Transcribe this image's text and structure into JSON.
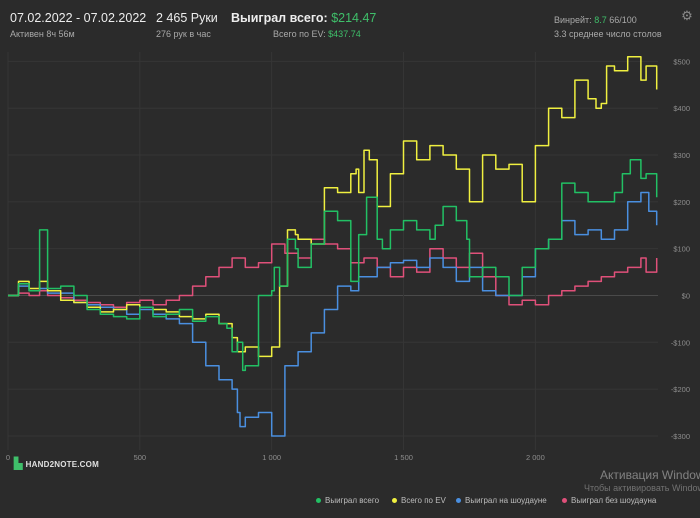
{
  "header": {
    "date_range": "07.02.2022 - 07.02.2022",
    "active": "Активен 8ч 56м",
    "hands": "2 465 Руки",
    "hands_per_hour": "276 рук в час",
    "won_total_label": "Выиграл всего:",
    "won_total_value": "$214.47",
    "ev_total_label": "Всего по EV:",
    "ev_total_value": "$437.74",
    "winrate_label": "Винрейт:",
    "winrate_value": "8.7",
    "winrate_suffix": "66/100",
    "avg_tables": "3.3 среднее число столов"
  },
  "logo": {
    "text": "HAND2NOTE.COM"
  },
  "legend": [
    {
      "label": "Выиграл всего",
      "color": "#22c064"
    },
    {
      "label": "Всего по EV",
      "color": "#f0f040"
    },
    {
      "label": "Выиграл на шоудауне",
      "color": "#4a8fe0"
    },
    {
      "label": "Выиграл без шоудауна",
      "color": "#e0507a"
    }
  ],
  "watermark": {
    "title": "Активация Windows",
    "subtitle": "Чтобы активировать Windows"
  },
  "chart_data": {
    "type": "line",
    "xlabel": "",
    "ylabel": "",
    "xlim": [
      0,
      2465
    ],
    "ylim": [
      -330,
      520
    ],
    "x_ticks": [
      {
        "value": 0,
        "label": "0"
      },
      {
        "value": 500,
        "label": "500"
      },
      {
        "value": 1000,
        "label": "1 000"
      },
      {
        "value": 1500,
        "label": "1 500"
      },
      {
        "value": 2000,
        "label": "2 000"
      }
    ],
    "y_ticks": [
      {
        "value": 500,
        "label": "$500"
      },
      {
        "value": 400,
        "label": "$400"
      },
      {
        "value": 300,
        "label": "$300"
      },
      {
        "value": 200,
        "label": "$200"
      },
      {
        "value": 100,
        "label": "$100"
      },
      {
        "value": 0,
        "label": "$0"
      },
      {
        "value": -100,
        "label": "-$100"
      },
      {
        "value": -200,
        "label": "-$200"
      },
      {
        "value": -300,
        "label": "-$300"
      }
    ],
    "grid": true,
    "series": [
      {
        "name": "Выиграл всего",
        "color": "#22c064",
        "x": [
          0,
          40,
          80,
          120,
          150,
          200,
          250,
          300,
          350,
          400,
          450,
          500,
          550,
          600,
          650,
          700,
          750,
          800,
          830,
          850,
          870,
          890,
          900,
          950,
          1000,
          1010,
          1030,
          1060,
          1090,
          1100,
          1150,
          1200,
          1250,
          1300,
          1330,
          1360,
          1400,
          1420,
          1450,
          1500,
          1550,
          1600,
          1620,
          1650,
          1700,
          1740,
          1750,
          1800,
          1850,
          1900,
          1950,
          2000,
          2050,
          2100,
          2150,
          2200,
          2250,
          2300,
          2330,
          2360,
          2400,
          2420,
          2460
        ],
        "y": [
          0,
          25,
          10,
          140,
          15,
          20,
          0,
          -30,
          -40,
          -45,
          -50,
          -25,
          -45,
          -40,
          -30,
          -55,
          -45,
          -60,
          -70,
          -120,
          -100,
          -160,
          -150,
          0,
          10,
          60,
          20,
          120,
          100,
          60,
          110,
          180,
          160,
          30,
          130,
          210,
          120,
          100,
          140,
          160,
          140,
          120,
          150,
          190,
          160,
          120,
          40,
          60,
          40,
          0,
          60,
          100,
          120,
          240,
          220,
          200,
          200,
          220,
          260,
          290,
          250,
          260,
          210
        ]
      },
      {
        "name": "Всего по EV",
        "color": "#f0f040",
        "x": [
          0,
          40,
          80,
          120,
          150,
          200,
          250,
          300,
          350,
          400,
          450,
          500,
          550,
          600,
          650,
          700,
          750,
          800,
          850,
          870,
          900,
          950,
          1000,
          1030,
          1060,
          1090,
          1100,
          1150,
          1200,
          1250,
          1300,
          1320,
          1330,
          1350,
          1370,
          1400,
          1450,
          1500,
          1550,
          1600,
          1650,
          1700,
          1750,
          1800,
          1850,
          1900,
          1950,
          2000,
          2030,
          2050,
          2100,
          2150,
          2200,
          2230,
          2250,
          2270,
          2300,
          2350,
          2400,
          2420,
          2460
        ],
        "y": [
          0,
          30,
          15,
          30,
          10,
          -10,
          -15,
          -25,
          -35,
          -30,
          -20,
          -25,
          -30,
          -35,
          -45,
          -50,
          -40,
          -60,
          -90,
          -120,
          -110,
          -130,
          -110,
          20,
          140,
          130,
          120,
          110,
          230,
          220,
          260,
          270,
          220,
          310,
          290,
          190,
          260,
          330,
          290,
          320,
          300,
          270,
          200,
          300,
          270,
          280,
          200,
          320,
          320,
          400,
          380,
          460,
          420,
          400,
          410,
          490,
          480,
          510,
          460,
          490,
          440
        ]
      },
      {
        "name": "Выиграл на шоудауне",
        "color": "#4a8fe0",
        "x": [
          0,
          40,
          80,
          120,
          150,
          200,
          250,
          300,
          350,
          400,
          450,
          500,
          550,
          600,
          650,
          700,
          750,
          800,
          850,
          870,
          880,
          900,
          950,
          1000,
          1050,
          1100,
          1150,
          1200,
          1250,
          1300,
          1330,
          1400,
          1450,
          1500,
          1550,
          1600,
          1650,
          1700,
          1750,
          1800,
          1850,
          1900,
          1950,
          2000,
          2050,
          2100,
          2150,
          2200,
          2250,
          2300,
          2350,
          2400,
          2430,
          2460
        ],
        "y": [
          0,
          20,
          10,
          15,
          5,
          5,
          -15,
          -20,
          -25,
          -30,
          -40,
          -30,
          -40,
          -50,
          -60,
          -100,
          -150,
          -180,
          -200,
          -250,
          -280,
          -260,
          -250,
          -300,
          -150,
          -120,
          -80,
          -30,
          20,
          10,
          40,
          60,
          70,
          75,
          60,
          80,
          60,
          30,
          60,
          10,
          0,
          0,
          40,
          100,
          120,
          160,
          130,
          140,
          120,
          140,
          200,
          220,
          180,
          150
        ]
      },
      {
        "name": "Выиграл без шоудауна",
        "color": "#e0507a",
        "x": [
          0,
          40,
          80,
          120,
          150,
          200,
          250,
          300,
          350,
          400,
          450,
          500,
          550,
          600,
          650,
          700,
          750,
          800,
          850,
          900,
          950,
          1000,
          1050,
          1100,
          1150,
          1200,
          1250,
          1300,
          1350,
          1400,
          1450,
          1500,
          1550,
          1600,
          1650,
          1700,
          1750,
          1800,
          1850,
          1900,
          1950,
          2000,
          2050,
          2100,
          2150,
          2200,
          2250,
          2300,
          2350,
          2400,
          2420,
          2460
        ],
        "y": [
          0,
          5,
          0,
          10,
          0,
          -5,
          -10,
          -15,
          -20,
          -25,
          -15,
          -10,
          -20,
          -10,
          0,
          20,
          40,
          60,
          80,
          60,
          70,
          110,
          90,
          80,
          120,
          110,
          100,
          70,
          80,
          60,
          40,
          60,
          50,
          100,
          80,
          60,
          90,
          40,
          0,
          -20,
          -10,
          -20,
          0,
          10,
          20,
          30,
          40,
          50,
          60,
          80,
          50,
          80
        ]
      }
    ]
  }
}
